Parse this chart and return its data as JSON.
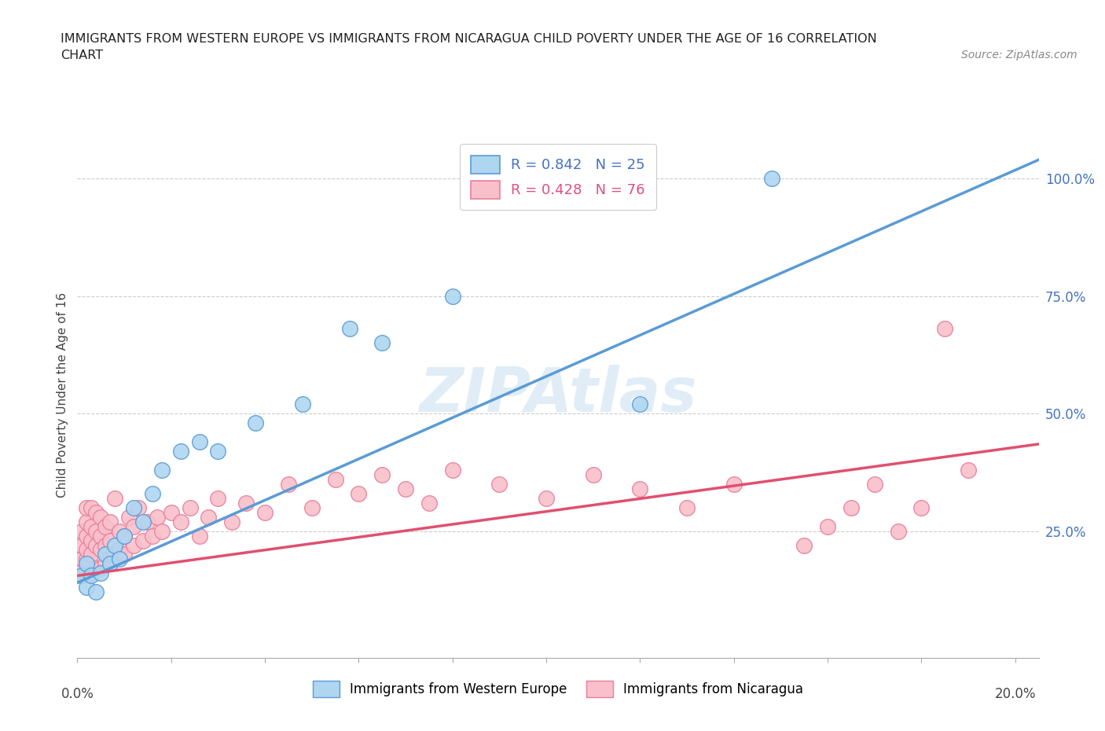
{
  "title_line1": "IMMIGRANTS FROM WESTERN EUROPE VS IMMIGRANTS FROM NICARAGUA CHILD POVERTY UNDER THE AGE OF 16 CORRELATION",
  "title_line2": "CHART",
  "source": "Source: ZipAtlas.com",
  "ylabel": "Child Poverty Under the Age of 16",
  "legend1_label": "R = 0.842   N = 25",
  "legend2_label": "R = 0.428   N = 76",
  "legend_bottom_label1": "Immigrants from Western Europe",
  "legend_bottom_label2": "Immigrants from Nicaragua",
  "watermark": "ZIPAtlas",
  "color_blue_fill": "#aed6f1",
  "color_blue_edge": "#5b9bd5",
  "color_pink_fill": "#f9c0cb",
  "color_pink_edge": "#e87f9b",
  "color_blue_line": "#5b9bd5",
  "color_pink_line": "#e05070",
  "color_R_blue": "#4472c4",
  "color_R_pink": "#e05080",
  "xlim_min": 0.0,
  "xlim_max": 0.205,
  "ylim_min": -0.02,
  "ylim_max": 1.1,
  "blue_line_x": [
    0.0,
    0.205
  ],
  "blue_line_y": [
    0.14,
    1.04
  ],
  "pink_line_x": [
    0.0,
    0.205
  ],
  "pink_line_y": [
    0.155,
    0.435
  ],
  "blue_x": [
    0.001,
    0.002,
    0.002,
    0.003,
    0.004,
    0.005,
    0.006,
    0.007,
    0.008,
    0.009,
    0.01,
    0.012,
    0.014,
    0.016,
    0.018,
    0.022,
    0.026,
    0.03,
    0.038,
    0.048,
    0.058,
    0.065,
    0.08,
    0.12,
    0.148
  ],
  "blue_y": [
    0.155,
    0.13,
    0.18,
    0.155,
    0.12,
    0.16,
    0.2,
    0.18,
    0.22,
    0.19,
    0.24,
    0.3,
    0.27,
    0.33,
    0.38,
    0.42,
    0.44,
    0.42,
    0.48,
    0.52,
    0.68,
    0.65,
    0.75,
    0.52,
    1.0
  ],
  "pink_x": [
    0.001,
    0.001,
    0.001,
    0.001,
    0.001,
    0.002,
    0.002,
    0.002,
    0.002,
    0.002,
    0.002,
    0.003,
    0.003,
    0.003,
    0.003,
    0.003,
    0.004,
    0.004,
    0.004,
    0.004,
    0.005,
    0.005,
    0.005,
    0.005,
    0.006,
    0.006,
    0.006,
    0.007,
    0.007,
    0.007,
    0.008,
    0.008,
    0.009,
    0.009,
    0.01,
    0.01,
    0.011,
    0.012,
    0.012,
    0.013,
    0.014,
    0.015,
    0.016,
    0.017,
    0.018,
    0.02,
    0.022,
    0.024,
    0.026,
    0.028,
    0.03,
    0.033,
    0.036,
    0.04,
    0.045,
    0.05,
    0.055,
    0.06,
    0.065,
    0.07,
    0.075,
    0.08,
    0.09,
    0.1,
    0.11,
    0.12,
    0.13,
    0.14,
    0.155,
    0.16,
    0.165,
    0.17,
    0.175,
    0.18,
    0.185,
    0.19
  ],
  "pink_y": [
    0.155,
    0.17,
    0.19,
    0.22,
    0.25,
    0.16,
    0.19,
    0.21,
    0.24,
    0.27,
    0.3,
    0.16,
    0.2,
    0.23,
    0.26,
    0.3,
    0.17,
    0.22,
    0.25,
    0.29,
    0.17,
    0.21,
    0.24,
    0.28,
    0.18,
    0.22,
    0.26,
    0.19,
    0.23,
    0.27,
    0.2,
    0.32,
    0.21,
    0.25,
    0.2,
    0.24,
    0.28,
    0.22,
    0.26,
    0.3,
    0.23,
    0.27,
    0.24,
    0.28,
    0.25,
    0.29,
    0.27,
    0.3,
    0.24,
    0.28,
    0.32,
    0.27,
    0.31,
    0.29,
    0.35,
    0.3,
    0.36,
    0.33,
    0.37,
    0.34,
    0.31,
    0.38,
    0.35,
    0.32,
    0.37,
    0.34,
    0.3,
    0.35,
    0.22,
    0.26,
    0.3,
    0.35,
    0.25,
    0.3,
    0.68,
    0.38
  ]
}
